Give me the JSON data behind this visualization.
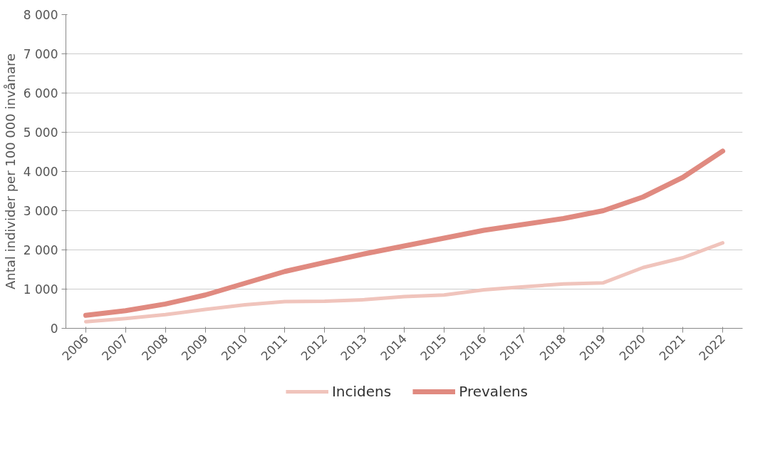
{
  "chart_data": {
    "type": "line",
    "ylabel": "Antal individer per 100 000 invånare",
    "categories": [
      "2006",
      "2007",
      "2008",
      "2009",
      "2010",
      "2011",
      "2012",
      "2013",
      "2014",
      "2015",
      "2016",
      "2017",
      "2018",
      "2019",
      "2020",
      "2021",
      "2022"
    ],
    "series": [
      {
        "name": "Incidens",
        "color": "#f0c4bc",
        "values": [
          170,
          250,
          350,
          480,
          600,
          680,
          690,
          730,
          810,
          850,
          980,
          1060,
          1130,
          1160,
          1550,
          1800,
          2180
        ]
      },
      {
        "name": "Prevalens",
        "color": "#e08a80",
        "values": [
          330,
          450,
          620,
          850,
          1150,
          1450,
          1680,
          1900,
          2100,
          2300,
          2500,
          2650,
          2800,
          3000,
          3350,
          3850,
          4520
        ]
      }
    ],
    "ylim": [
      0,
      8000
    ],
    "yticks": [
      0,
      {
        "value": 1000,
        "label": "1 000"
      },
      {
        "value": 2000,
        "label": "2 000"
      },
      {
        "value": 3000,
        "label": "3 000"
      },
      {
        "value": 4000,
        "label": "4 000"
      },
      {
        "value": 5000,
        "label": "5 000"
      },
      {
        "value": 6000,
        "label": "6 000"
      },
      {
        "value": 7000,
        "label": "7 000"
      },
      {
        "value": 8000,
        "label": "8 000"
      }
    ],
    "grid": "y",
    "legend": "bottom",
    "marker": "none",
    "line_style": "solid"
  }
}
